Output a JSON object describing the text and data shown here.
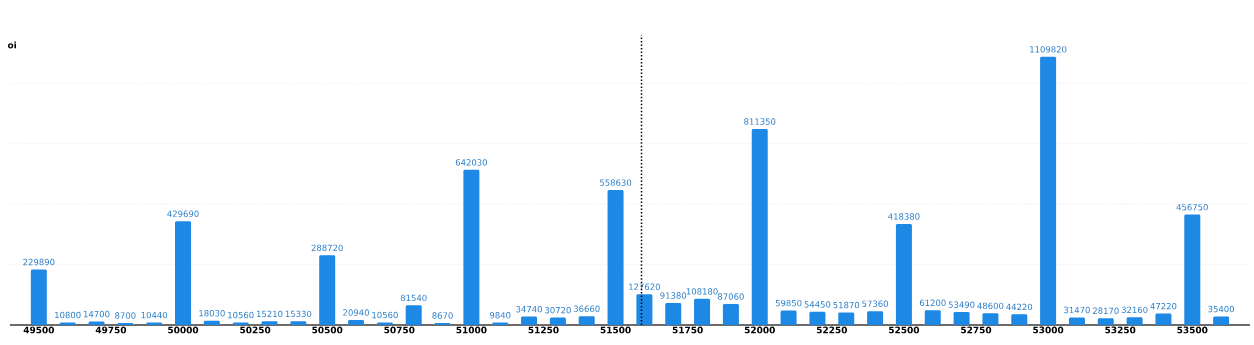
{
  "chart_data": {
    "type": "bar",
    "ylabel": "oi",
    "x": [
      49500,
      49600,
      49700,
      49800,
      49900,
      50000,
      50100,
      50200,
      50300,
      50400,
      50500,
      50600,
      50700,
      50800,
      50900,
      51000,
      51100,
      51200,
      51300,
      51400,
      51500,
      51600,
      51700,
      51800,
      51900,
      52000,
      52100,
      52200,
      52300,
      52400,
      52500,
      52600,
      52700,
      52800,
      52900,
      53000,
      53100,
      53200,
      53300,
      53400,
      53500,
      53600
    ],
    "values": [
      229890,
      10800,
      14700,
      8700,
      10440,
      429690,
      18030,
      10560,
      15210,
      15330,
      288720,
      20940,
      10560,
      81540,
      8670,
      642030,
      9840,
      34740,
      30720,
      36660,
      558630,
      127620,
      91380,
      108180,
      87060,
      811350,
      59850,
      54450,
      51870,
      57360,
      418380,
      61200,
      53490,
      48600,
      44220,
      1109820,
      31470,
      28170,
      32160,
      47220,
      456750,
      35400
    ],
    "color": "#1e88e5",
    "data_labels": true,
    "xlim": [
      49400,
      53700
    ],
    "xticks": [
      49500,
      49750,
      50000,
      50250,
      50500,
      50750,
      51000,
      51250,
      51500,
      51750,
      52000,
      52250,
      52500,
      52750,
      53000,
      53250,
      53500
    ],
    "ylim": [
      0,
      1200000
    ],
    "yticks": [
      {
        "value": 0,
        "label": null
      },
      {
        "value": 250000,
        "label": null
      },
      {
        "value": 500000,
        "label": null
      },
      {
        "value": 750000,
        "label": null
      },
      {
        "value": 1000000,
        "label": null
      }
    ],
    "grid": "y",
    "tick_labels": "x",
    "ref_lines": [
      {
        "axis": "x",
        "value": 51590,
        "color": "#000000",
        "line_style": "dotted"
      }
    ]
  }
}
